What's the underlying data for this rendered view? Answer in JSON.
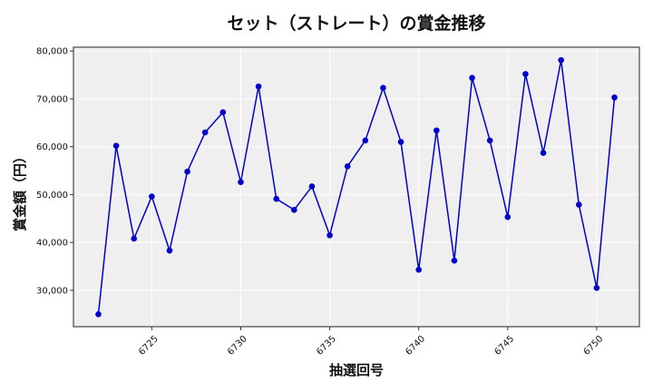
{
  "chart_data": {
    "type": "line",
    "title": "セット（ストレート）の賞金推移",
    "xlabel": "抽選回号",
    "ylabel": "賞金額（円）",
    "x": [
      6722,
      6723,
      6724,
      6725,
      6726,
      6727,
      6728,
      6729,
      6730,
      6731,
      6732,
      6733,
      6734,
      6735,
      6736,
      6737,
      6738,
      6739,
      6740,
      6741,
      6742,
      6743,
      6744,
      6745,
      6746,
      6747,
      6748,
      6749,
      6750,
      6751
    ],
    "series": [
      {
        "values": [
          25000,
          60200,
          40800,
          49600,
          38300,
          54800,
          63000,
          67200,
          52600,
          72600,
          49100,
          46800,
          51700,
          41500,
          55900,
          61300,
          72300,
          61000,
          34300,
          63400,
          36200,
          74400,
          61300,
          45300,
          75200,
          58700,
          78100,
          47900,
          30500,
          70300
        ],
        "color": "#0000cc"
      }
    ],
    "xlim": [
      6720.6,
      6752.4
    ],
    "ylim": [
      22400,
      80800
    ],
    "xticks": [
      6725,
      6730,
      6735,
      6740,
      6745,
      6750
    ],
    "xtick_labels": [
      "6725",
      "6730",
      "6735",
      "6740",
      "6745",
      "6750"
    ],
    "yticks": [
      30000,
      40000,
      50000,
      60000,
      70000,
      80000
    ],
    "ytick_labels": [
      "30,000",
      "40,000",
      "50,000",
      "60,000",
      "70,000",
      "80,000"
    ],
    "grid": true,
    "legend": false,
    "plot_background": "#efefef",
    "grid_color": "#ffffff"
  }
}
